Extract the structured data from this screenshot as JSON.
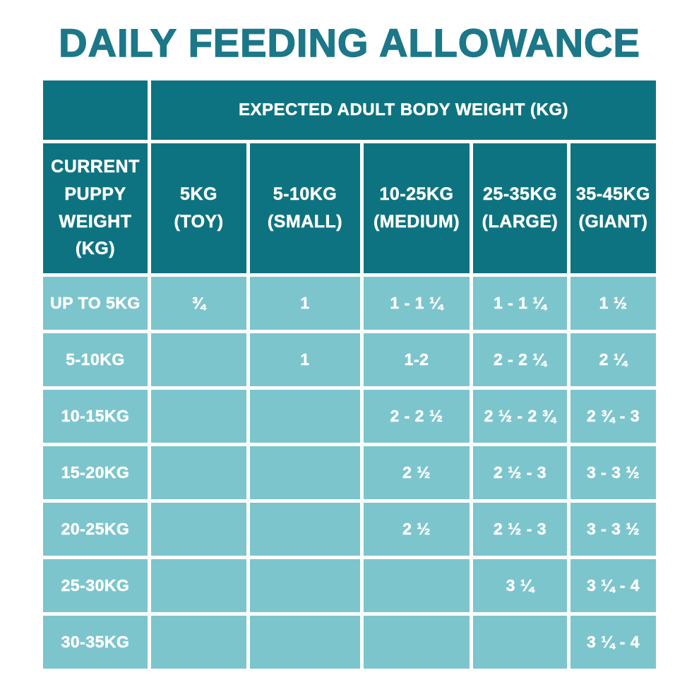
{
  "title": "DAILY FEEDING ALLOWANCE",
  "colors": {
    "title_teal": "#1c7789",
    "header_teal": "#0d7380",
    "cell_blue": "#7cc5cd",
    "gridline": "#ffffff",
    "text": "#ffffff"
  },
  "table": {
    "top_header": "EXPECTED ADULT BODY WEIGHT (KG)",
    "row_header_title": "CURRENT\nPUPPY\nWEIGHT (KG)",
    "columns": [
      "5KG\n(TOY)",
      "5-10KG\n(SMALL)",
      "10-25KG\n(MEDIUM)",
      "25-35KG\n(LARGE)",
      "35-45KG\n(GIANT)"
    ],
    "rows": [
      {
        "label": "UP TO 5KG",
        "values": [
          "¾",
          "1",
          "1 - 1 ¼",
          "1 - 1 ¼",
          "1 ½"
        ]
      },
      {
        "label": "5-10KG",
        "values": [
          "",
          "1",
          "1-2",
          "2 - 2 ¼",
          "2 ¼"
        ]
      },
      {
        "label": "10-15KG",
        "values": [
          "",
          "",
          "2 - 2 ½",
          "2 ½ - 2 ¾",
          "2 ¾ - 3"
        ]
      },
      {
        "label": "15-20KG",
        "values": [
          "",
          "",
          "2 ½",
          "2 ½ - 3",
          "3 - 3 ½"
        ]
      },
      {
        "label": "20-25KG",
        "values": [
          "",
          "",
          "2 ½",
          "2 ½ - 3",
          "3 - 3 ½"
        ]
      },
      {
        "label": "25-30KG",
        "values": [
          "",
          "",
          "",
          "3 ¼",
          "3 ¼ - 4"
        ]
      },
      {
        "label": "30-35KG",
        "values": [
          "",
          "",
          "",
          "",
          "3 ¼ - 4"
        ]
      }
    ]
  },
  "chart_data": {
    "type": "table",
    "title": "DAILY FEEDING ALLOWANCE",
    "column_group_header": "EXPECTED ADULT BODY WEIGHT (KG)",
    "row_header": "CURRENT PUPPY WEIGHT (KG)",
    "categories": [
      "5KG (TOY)",
      "5-10KG (SMALL)",
      "10-25KG (MEDIUM)",
      "25-35KG (LARGE)",
      "35-45KG (GIANT)"
    ],
    "series": [
      {
        "name": "UP TO 5KG",
        "values": [
          "¾",
          "1",
          "1 - 1 ¼",
          "1 - 1 ¼",
          "1 ½"
        ]
      },
      {
        "name": "5-10KG",
        "values": [
          "",
          "1",
          "1-2",
          "2 - 2 ¼",
          "2 ¼"
        ]
      },
      {
        "name": "10-15KG",
        "values": [
          "",
          "",
          "2 - 2 ½",
          "2 ½ - 2 ¾",
          "2 ¾ - 3"
        ]
      },
      {
        "name": "15-20KG",
        "values": [
          "",
          "",
          "2 ½",
          "2 ½ - 3",
          "3 - 3 ½"
        ]
      },
      {
        "name": "20-25KG",
        "values": [
          "",
          "",
          "2 ½",
          "2 ½ - 3",
          "3 - 3 ½"
        ]
      },
      {
        "name": "25-30KG",
        "values": [
          "",
          "",
          "",
          "3 ¼",
          "3 ¼ - 4"
        ]
      },
      {
        "name": "30-35KG",
        "values": [
          "",
          "",
          "",
          "",
          "3 ¼ - 4"
        ]
      }
    ]
  }
}
